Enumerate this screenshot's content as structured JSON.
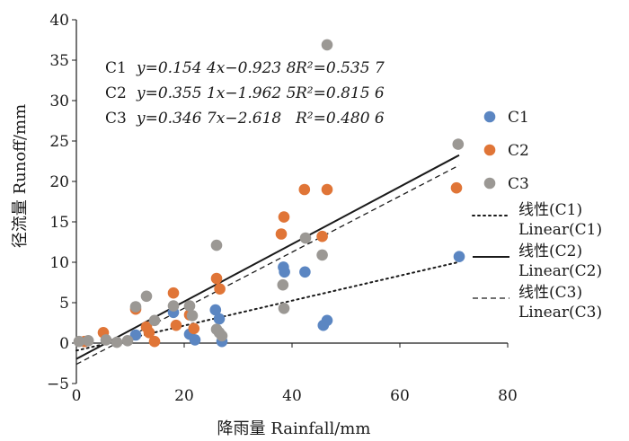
{
  "chart_data": {
    "type": "scatter",
    "xlabel": "降雨量 Rainfall/mm",
    "ylabel": "径流量 Runoff/mm",
    "xlim": [
      0,
      80
    ],
    "ylim": [
      -5,
      40
    ],
    "xticks": [
      0,
      20,
      40,
      60,
      80
    ],
    "yticks": [
      -5,
      0,
      5,
      10,
      15,
      20,
      25,
      30,
      35,
      40
    ],
    "grid": false,
    "legend_position": "right",
    "series": [
      {
        "name": "C1",
        "color": "#5B86C2",
        "points": [
          [
            11,
            1
          ],
          [
            18,
            3.8
          ],
          [
            21,
            1.1
          ],
          [
            22,
            0.4
          ],
          [
            25.8,
            4.1
          ],
          [
            26.5,
            3
          ],
          [
            27,
            0.2
          ],
          [
            38.4,
            9.4
          ],
          [
            38.6,
            8.8
          ],
          [
            42.4,
            8.8
          ],
          [
            45.8,
            2.2
          ],
          [
            46.5,
            2.8
          ],
          [
            71,
            10.7
          ]
        ]
      },
      {
        "name": "C2",
        "color": "#E07537",
        "points": [
          [
            1.5,
            0.2
          ],
          [
            5,
            1.3
          ],
          [
            11,
            4.2
          ],
          [
            13,
            2
          ],
          [
            13.5,
            1.3
          ],
          [
            14.5,
            0.2
          ],
          [
            18,
            6.2
          ],
          [
            18.5,
            2.2
          ],
          [
            21,
            3.5
          ],
          [
            21.8,
            1.8
          ],
          [
            26,
            8
          ],
          [
            26.6,
            6.7
          ],
          [
            38,
            13.5
          ],
          [
            38.5,
            15.6
          ],
          [
            42.3,
            19
          ],
          [
            45.6,
            13.2
          ],
          [
            46.5,
            19
          ],
          [
            70.5,
            19.2
          ]
        ]
      },
      {
        "name": "C3",
        "color": "#9B9894",
        "points": [
          [
            0.5,
            0.2
          ],
          [
            2.2,
            0.3
          ],
          [
            5.5,
            0.4
          ],
          [
            7.5,
            0.1
          ],
          [
            9.5,
            0.3
          ],
          [
            11,
            4.5
          ],
          [
            13,
            5.8
          ],
          [
            14.5,
            2.8
          ],
          [
            18,
            4.6
          ],
          [
            21,
            4.6
          ],
          [
            21.5,
            3.4
          ],
          [
            26,
            12.1
          ],
          [
            26,
            1.7
          ],
          [
            26.5,
            1.3
          ],
          [
            27,
            0.9
          ],
          [
            38.3,
            7.2
          ],
          [
            38.5,
            4.3
          ],
          [
            42.5,
            13
          ],
          [
            45.6,
            10.9
          ],
          [
            46.5,
            36.9
          ],
          [
            70.8,
            24.6
          ]
        ]
      }
    ],
    "trendlines": [
      {
        "name": "线性(C1) Linear(C1)",
        "label_line1": "线性(C1)",
        "label_line2": "Linear(C1)",
        "slope": 0.1544,
        "intercept": -0.9238,
        "style": "dotted",
        "x_range": [
          0,
          71
        ]
      },
      {
        "name": "线性(C2) Linear(C2)",
        "label_line1": "线性(C2)",
        "label_line2": "Linear(C2)",
        "slope": 0.3551,
        "intercept": -1.9625,
        "style": "solid",
        "x_range": [
          0,
          71
        ]
      },
      {
        "name": "线性(C3) Linear(C3)",
        "label_line1": "线性(C3)",
        "label_line2": "Linear(C3)",
        "slope": 0.3467,
        "intercept": -2.618,
        "style": "dashed",
        "x_range": [
          0,
          71
        ]
      }
    ],
    "equations": [
      {
        "series": "C1",
        "eq": "y=0.154 4x−0.923 8",
        "r2_label": "R²=0.535 7"
      },
      {
        "series": "C2",
        "eq": "y=0.355 1x−1.962 5",
        "r2_label": "R²=0.815 6"
      },
      {
        "series": "C3",
        "eq": "y=0.346 7x−2.618",
        "r2_label": "R²=0.480 6"
      }
    ]
  }
}
